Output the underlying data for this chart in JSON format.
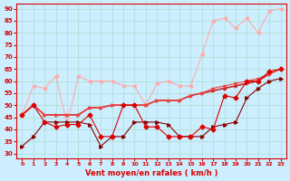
{
  "title": "",
  "xlabel": "Vent moyen/en rafales ( km/h )",
  "ylabel": "",
  "background_color": "#cceeff",
  "grid_color": "#aaddcc",
  "x": [
    0,
    1,
    2,
    3,
    4,
    5,
    6,
    7,
    8,
    9,
    10,
    11,
    12,
    13,
    14,
    15,
    16,
    17,
    18,
    19,
    20,
    21,
    22,
    23
  ],
  "line1": [
    46,
    50,
    43,
    41,
    42,
    42,
    46,
    37,
    37,
    50,
    50,
    41,
    41,
    37,
    37,
    37,
    41,
    40,
    54,
    53,
    60,
    60,
    64,
    65
  ],
  "line2": [
    33,
    37,
    43,
    43,
    43,
    43,
    42,
    33,
    37,
    37,
    43,
    43,
    43,
    42,
    37,
    37,
    37,
    41,
    42,
    43,
    53,
    57,
    60,
    61
  ],
  "line3": [
    46,
    58,
    57,
    62,
    42,
    62,
    60,
    60,
    60,
    58,
    58,
    50,
    59,
    60,
    58,
    58,
    71,
    85,
    86,
    82,
    86,
    80,
    89,
    90
  ],
  "line4": [
    46,
    50,
    46,
    46,
    46,
    46,
    49,
    49,
    50,
    50,
    50,
    50,
    52,
    52,
    52,
    54,
    55,
    56,
    57,
    58,
    59,
    60,
    63,
    65
  ],
  "line5": [
    46,
    50,
    46,
    46,
    46,
    46,
    49,
    49,
    50,
    50,
    50,
    50,
    52,
    52,
    52,
    54,
    55,
    57,
    58,
    59,
    60,
    61,
    63,
    65
  ],
  "ylim": [
    28,
    92
  ],
  "yticks": [
    30,
    35,
    40,
    45,
    50,
    55,
    60,
    65,
    70,
    75,
    80,
    85,
    90
  ],
  "xticks": [
    0,
    1,
    2,
    3,
    4,
    5,
    6,
    7,
    8,
    9,
    10,
    11,
    12,
    13,
    14,
    15,
    16,
    17,
    18,
    19,
    20,
    21,
    22,
    23
  ],
  "line1_color": "#dd0000",
  "line2_color": "#880000",
  "line3_color": "#ffaaaa",
  "line4_color": "#cc2222",
  "line5_color": "#ee4444"
}
